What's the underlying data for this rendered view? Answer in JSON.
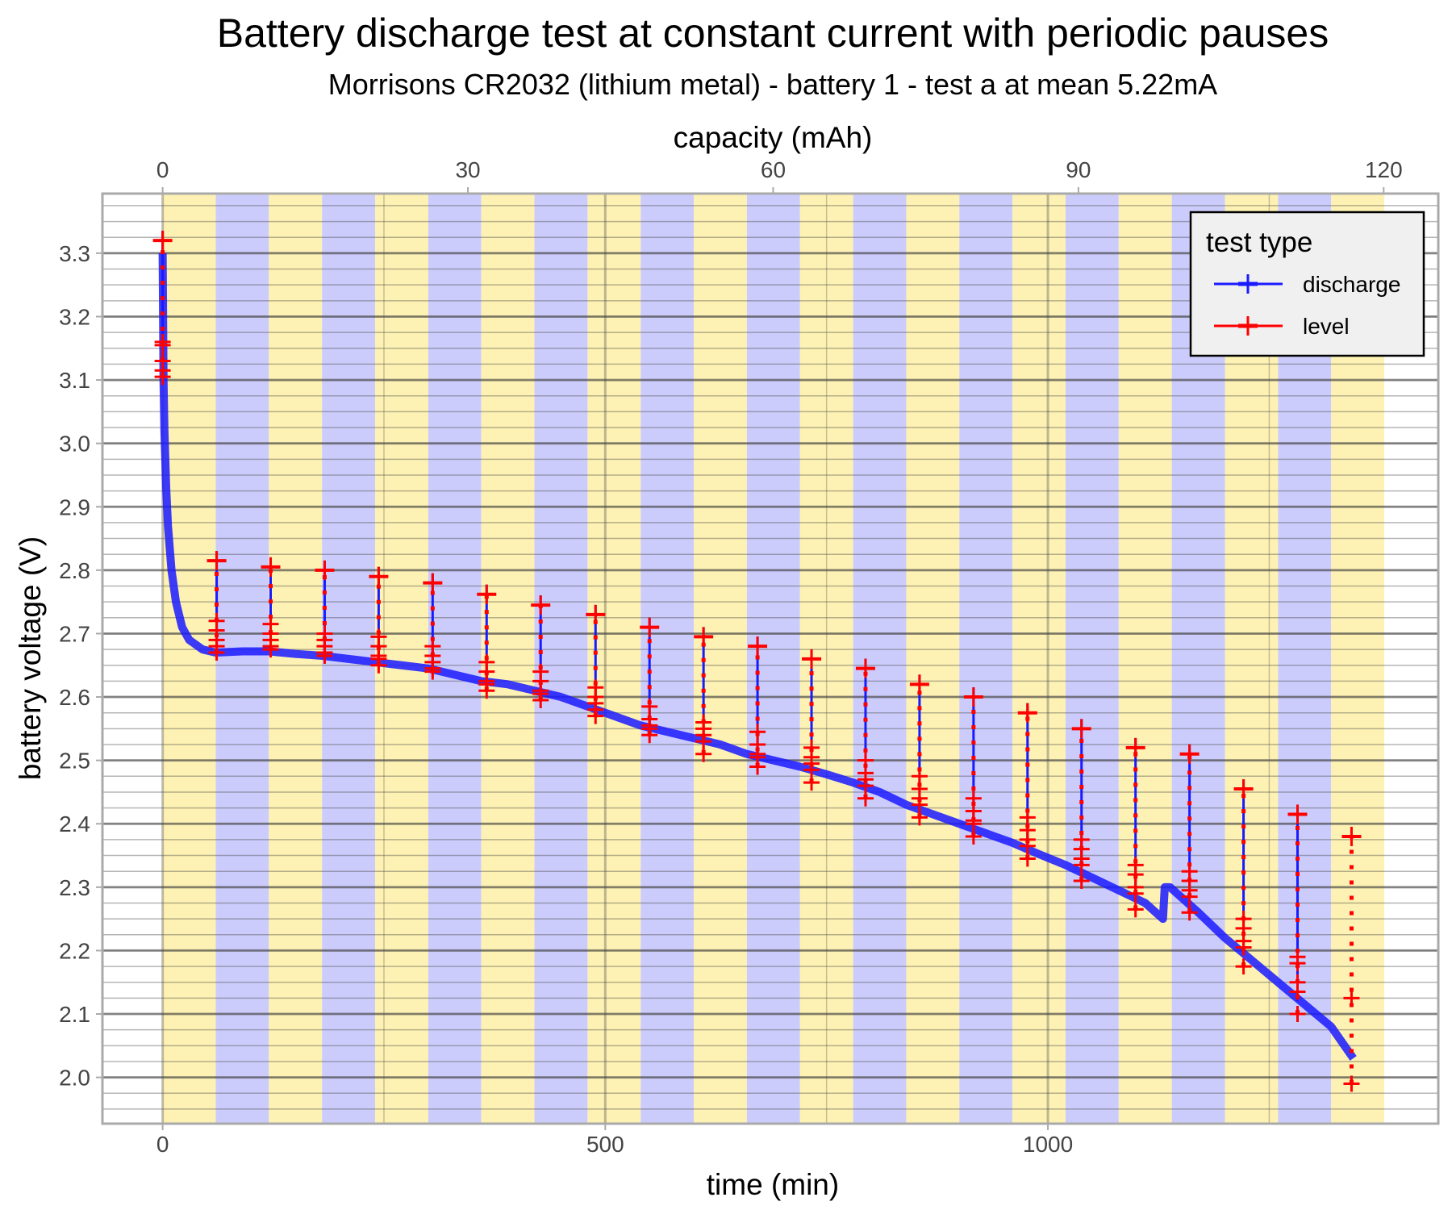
{
  "chart_data": {
    "type": "line",
    "title": "Battery discharge test at constant current with periodic pauses",
    "subtitle": "Morrisons CR2032 (lithium metal) - battery 1 - test a at mean 5.22mA",
    "xlabel": "time (min)",
    "x2label": "capacity (mAh)",
    "ylabel": "battery voltage (V)",
    "xlim": [
      -68,
      1441
    ],
    "ylim": [
      1.927,
      3.394
    ],
    "x_ticks": [
      0,
      500,
      1000
    ],
    "x_minor_ticks": [
      250,
      750,
      1250
    ],
    "x2_ticks": [
      0,
      30,
      60,
      90,
      120
    ],
    "x2_per_min": 0.087,
    "y_ticks": [
      2.0,
      2.1,
      2.2,
      2.3,
      2.4,
      2.5,
      2.6,
      2.7,
      2.8,
      2.9,
      3.0,
      3.1,
      3.2,
      3.3
    ],
    "y_minor_step": 0.025,
    "grid": true,
    "band_period_min": 60,
    "band_count": 23,
    "band_colors": [
      "#fdf2b3",
      "#ccccfc"
    ],
    "legend": {
      "title": "test type",
      "placement": "top-right",
      "items": [
        {
          "label": "discharge",
          "color": "#1a1aff"
        },
        {
          "label": "level",
          "color": "#ff0000"
        }
      ]
    },
    "discharge": {
      "name": "discharge",
      "color": "#1a1aff",
      "t": [
        0,
        1,
        2,
        4,
        6,
        10,
        15,
        22,
        30,
        45,
        60,
        90,
        120,
        150,
        180,
        210,
        240,
        270,
        300,
        330,
        360,
        390,
        420,
        450,
        480,
        510,
        540,
        570,
        600,
        630,
        660,
        690,
        720,
        750,
        780,
        810,
        840,
        870,
        900,
        930,
        960,
        990,
        1020,
        1050,
        1080,
        1110,
        1130,
        1132,
        1138,
        1150,
        1170,
        1200,
        1230,
        1260,
        1290,
        1320,
        1345
      ],
      "v": [
        3.3,
        3.1,
        3.02,
        2.93,
        2.87,
        2.8,
        2.75,
        2.71,
        2.69,
        2.675,
        2.67,
        2.672,
        2.672,
        2.668,
        2.665,
        2.66,
        2.655,
        2.65,
        2.645,
        2.635,
        2.625,
        2.62,
        2.61,
        2.6,
        2.585,
        2.57,
        2.555,
        2.545,
        2.535,
        2.525,
        2.51,
        2.5,
        2.49,
        2.478,
        2.465,
        2.45,
        2.43,
        2.415,
        2.4,
        2.385,
        2.37,
        2.352,
        2.335,
        2.315,
        2.295,
        2.275,
        2.25,
        2.3,
        2.3,
        2.285,
        2.26,
        2.22,
        2.185,
        2.15,
        2.115,
        2.08,
        2.03
      ]
    },
    "level": {
      "name": "level",
      "color": "#ff0000",
      "events": [
        {
          "t": 0,
          "top": 3.32,
          "low": 3.1,
          "markers": [
            3.32,
            3.16,
            3.155,
            3.13,
            3.115,
            3.105
          ]
        },
        {
          "t": 61,
          "top": 2.815,
          "low": 2.67,
          "markers": [
            2.815,
            2.72,
            2.705,
            2.69,
            2.68,
            2.67
          ]
        },
        {
          "t": 122,
          "top": 2.805,
          "low": 2.67,
          "markers": [
            2.805,
            2.715,
            2.7,
            2.69,
            2.68,
            2.675
          ]
        },
        {
          "t": 183,
          "top": 2.8,
          "low": 2.665,
          "markers": [
            2.8,
            2.7,
            2.69,
            2.68,
            2.67,
            2.665
          ]
        },
        {
          "t": 244,
          "top": 2.79,
          "low": 2.655,
          "markers": [
            2.79,
            2.695,
            2.68,
            2.665,
            2.66,
            2.65
          ]
        },
        {
          "t": 305,
          "top": 2.78,
          "low": 2.645,
          "markers": [
            2.78,
            2.68,
            2.665,
            2.655,
            2.645,
            2.64
          ]
        },
        {
          "t": 366,
          "top": 2.762,
          "low": 2.62,
          "markers": [
            2.762,
            2.655,
            2.64,
            2.625,
            2.62,
            2.61
          ]
        },
        {
          "t": 427,
          "top": 2.745,
          "low": 2.6,
          "markers": [
            2.745,
            2.64,
            2.625,
            2.61,
            2.605,
            2.595
          ]
        },
        {
          "t": 489,
          "top": 2.73,
          "low": 2.58,
          "markers": [
            2.73,
            2.615,
            2.6,
            2.59,
            2.58,
            2.57
          ]
        },
        {
          "t": 550,
          "top": 2.71,
          "low": 2.55,
          "markers": [
            2.71,
            2.585,
            2.565,
            2.555,
            2.55,
            2.54
          ]
        },
        {
          "t": 611,
          "top": 2.695,
          "low": 2.53,
          "markers": [
            2.695,
            2.56,
            2.55,
            2.54,
            2.53,
            2.51
          ]
        },
        {
          "t": 672,
          "top": 2.68,
          "low": 2.505,
          "markers": [
            2.68,
            2.545,
            2.525,
            2.51,
            2.505,
            2.49
          ]
        },
        {
          "t": 733,
          "top": 2.66,
          "low": 2.48,
          "markers": [
            2.66,
            2.52,
            2.505,
            2.495,
            2.485,
            2.465
          ]
        },
        {
          "t": 794,
          "top": 2.645,
          "low": 2.455,
          "markers": [
            2.645,
            2.5,
            2.48,
            2.47,
            2.46,
            2.44
          ]
        },
        {
          "t": 855,
          "top": 2.62,
          "low": 2.43,
          "markers": [
            2.62,
            2.475,
            2.455,
            2.44,
            2.43,
            2.41
          ]
        },
        {
          "t": 916,
          "top": 2.6,
          "low": 2.4,
          "markers": [
            2.6,
            2.44,
            2.42,
            2.405,
            2.4,
            2.38
          ]
        },
        {
          "t": 977,
          "top": 2.575,
          "low": 2.37,
          "markers": [
            2.575,
            2.41,
            2.39,
            2.375,
            2.365,
            2.345
          ]
        },
        {
          "t": 1038,
          "top": 2.55,
          "low": 2.335,
          "markers": [
            2.55,
            2.375,
            2.36,
            2.345,
            2.335,
            2.31
          ]
        },
        {
          "t": 1099,
          "top": 2.52,
          "low": 2.29,
          "markers": [
            2.52,
            2.335,
            2.32,
            2.3,
            2.29,
            2.265
          ]
        },
        {
          "t": 1160,
          "top": 2.51,
          "low": 2.29,
          "markers": [
            2.51,
            2.325,
            2.31,
            2.295,
            2.285,
            2.26
          ]
        },
        {
          "t": 1221,
          "top": 2.455,
          "low": 2.2,
          "markers": [
            2.455,
            2.25,
            2.235,
            2.215,
            2.205,
            2.175
          ]
        },
        {
          "t": 1282,
          "top": 2.415,
          "low": 2.12,
          "markers": [
            2.415,
            2.19,
            2.18,
            2.15,
            2.135,
            2.1
          ]
        },
        {
          "t": 1343,
          "top": 2.38,
          "low": 1.99,
          "markers": [
            2.38,
            2.125,
            1.99
          ],
          "dotted_only": true
        }
      ]
    }
  }
}
